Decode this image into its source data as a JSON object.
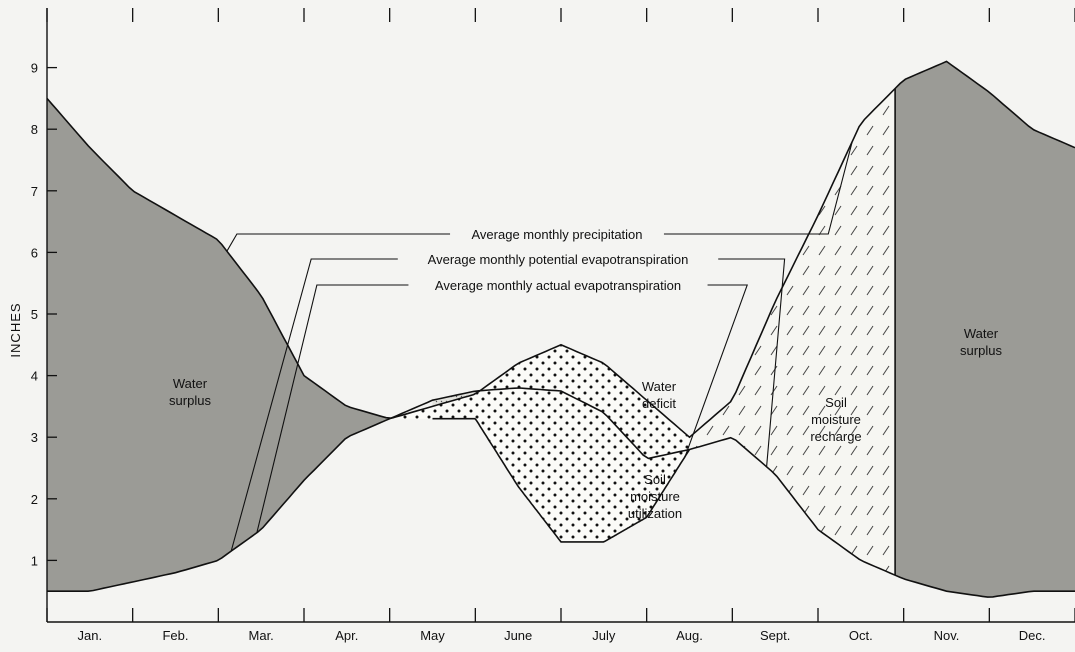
{
  "chart_data": {
    "type": "line",
    "title": "",
    "xlabel": "",
    "ylabel": "INCHES",
    "ylim": [
      0,
      10
    ],
    "yticks": [
      1,
      2,
      3,
      4,
      5,
      6,
      7,
      8,
      9
    ],
    "categories": [
      "Jan.",
      "Feb.",
      "Mar.",
      "Apr.",
      "May",
      "June",
      "July",
      "Aug.",
      "Sept.",
      "Oct.",
      "Nov.",
      "Dec."
    ],
    "grid": false,
    "series": [
      {
        "name": "Average monthly precipitation",
        "x": [
          0,
          0.5,
          1,
          1.5,
          2,
          2.5,
          3,
          3.5,
          4,
          4.5,
          5,
          5.5,
          6,
          6.5,
          7,
          7.5,
          8,
          8.5,
          9,
          9.5,
          10,
          10.5,
          11,
          11.5,
          12
        ],
        "values": [
          8.5,
          7.7,
          7.0,
          6.6,
          6.2,
          5.3,
          4.0,
          3.5,
          3.3,
          3.5,
          3.7,
          4.2,
          4.5,
          4.2,
          3.6,
          3.0,
          3.6,
          5.2,
          6.6,
          8.1,
          8.8,
          9.1,
          8.6,
          8.0,
          7.7
        ]
      },
      {
        "name": "Average monthly potential evapotranspiration",
        "x": [
          0,
          0.5,
          1,
          1.5,
          2,
          2.5,
          3,
          3.5,
          4,
          4.5,
          5,
          5.5,
          6,
          6.5,
          7,
          7.5,
          8,
          8.5,
          9,
          9.5,
          10,
          10.5,
          11,
          11.5,
          12
        ],
        "values": [
          0.5,
          0.5,
          0.65,
          0.8,
          1.0,
          1.5,
          2.3,
          3.0,
          3.3,
          3.6,
          3.75,
          3.8,
          3.75,
          3.4,
          2.65,
          2.8,
          3.0,
          2.4,
          1.5,
          1.0,
          0.7,
          0.5,
          0.4,
          0.5,
          0.5
        ]
      },
      {
        "name": "Average monthly actual evapotranspiration",
        "x": [
          0,
          0.5,
          1,
          1.5,
          2,
          2.5,
          3,
          3.5,
          4,
          4.5,
          5,
          5.5,
          6,
          6.5,
          7,
          7.5,
          8,
          8.5,
          9,
          9.5,
          10,
          10.5,
          11,
          11.5,
          12
        ],
        "values": [
          0.5,
          0.5,
          0.65,
          0.8,
          1.0,
          1.5,
          2.3,
          3.0,
          3.3,
          3.3,
          3.3,
          2.2,
          1.3,
          1.3,
          1.7,
          2.8,
          3.0,
          2.4,
          1.5,
          1.0,
          0.7,
          0.5,
          0.4,
          0.5,
          0.5
        ]
      }
    ],
    "annotations": {
      "water_surplus_left": [
        "Water",
        "surplus"
      ],
      "water_surplus_right": [
        "Water",
        "surplus"
      ],
      "water_deficit": [
        "Water",
        "deficit"
      ],
      "soil_moisture_utilization": [
        "Soil",
        "moisture",
        "utilization"
      ],
      "soil_moisture_recharge": [
        "Soil",
        "moisture",
        "recharge"
      ]
    }
  }
}
